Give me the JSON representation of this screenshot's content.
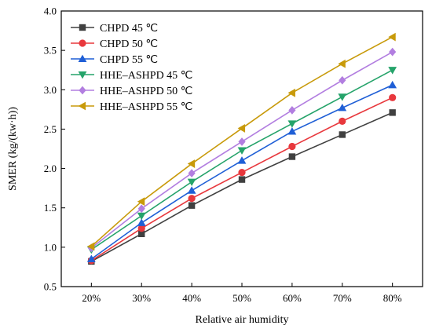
{
  "chart_data": {
    "type": "line",
    "title": "",
    "xlabel": "Relative air humidity",
    "ylabel": "SMER (kg/(kw·h))",
    "categories": [
      "20%",
      "30%",
      "40%",
      "50%",
      "60%",
      "70%",
      "80%"
    ],
    "ylim": [
      0.5,
      4.0
    ],
    "yticks": [
      "0.5",
      "1.0",
      "1.5",
      "2.0",
      "2.5",
      "3.0",
      "3.5",
      "4.0"
    ],
    "grid": false,
    "legend": "top-left",
    "series": [
      {
        "name": "CHPD 45 ℃",
        "color": "#404040",
        "marker": "square",
        "values": [
          0.82,
          1.17,
          1.53,
          1.86,
          2.15,
          2.43,
          2.71
        ]
      },
      {
        "name": "CHPD 50 ℃",
        "color": "#e8383d",
        "marker": "circle",
        "values": [
          0.83,
          1.24,
          1.62,
          1.95,
          2.28,
          2.6,
          2.9
        ]
      },
      {
        "name": "CHPD 55 ℃",
        "color": "#1f5fd6",
        "marker": "triangle-up",
        "values": [
          0.85,
          1.31,
          1.72,
          2.1,
          2.47,
          2.77,
          3.06
        ]
      },
      {
        "name": "HHE–ASHPD 45 ℃",
        "color": "#25a36a",
        "marker": "triangle-down",
        "values": [
          0.97,
          1.4,
          1.83,
          2.23,
          2.57,
          2.91,
          3.25
        ]
      },
      {
        "name": "HHE–ASHPD 50 ℃",
        "color": "#b27ee0",
        "marker": "diamond",
        "values": [
          0.99,
          1.49,
          1.94,
          2.34,
          2.74,
          3.12,
          3.48
        ]
      },
      {
        "name": "HHE–ASHPD 55 ℃",
        "color": "#c89a0a",
        "marker": "triangle-left",
        "values": [
          1.01,
          1.58,
          2.06,
          2.51,
          2.96,
          3.33,
          3.67
        ]
      }
    ]
  }
}
